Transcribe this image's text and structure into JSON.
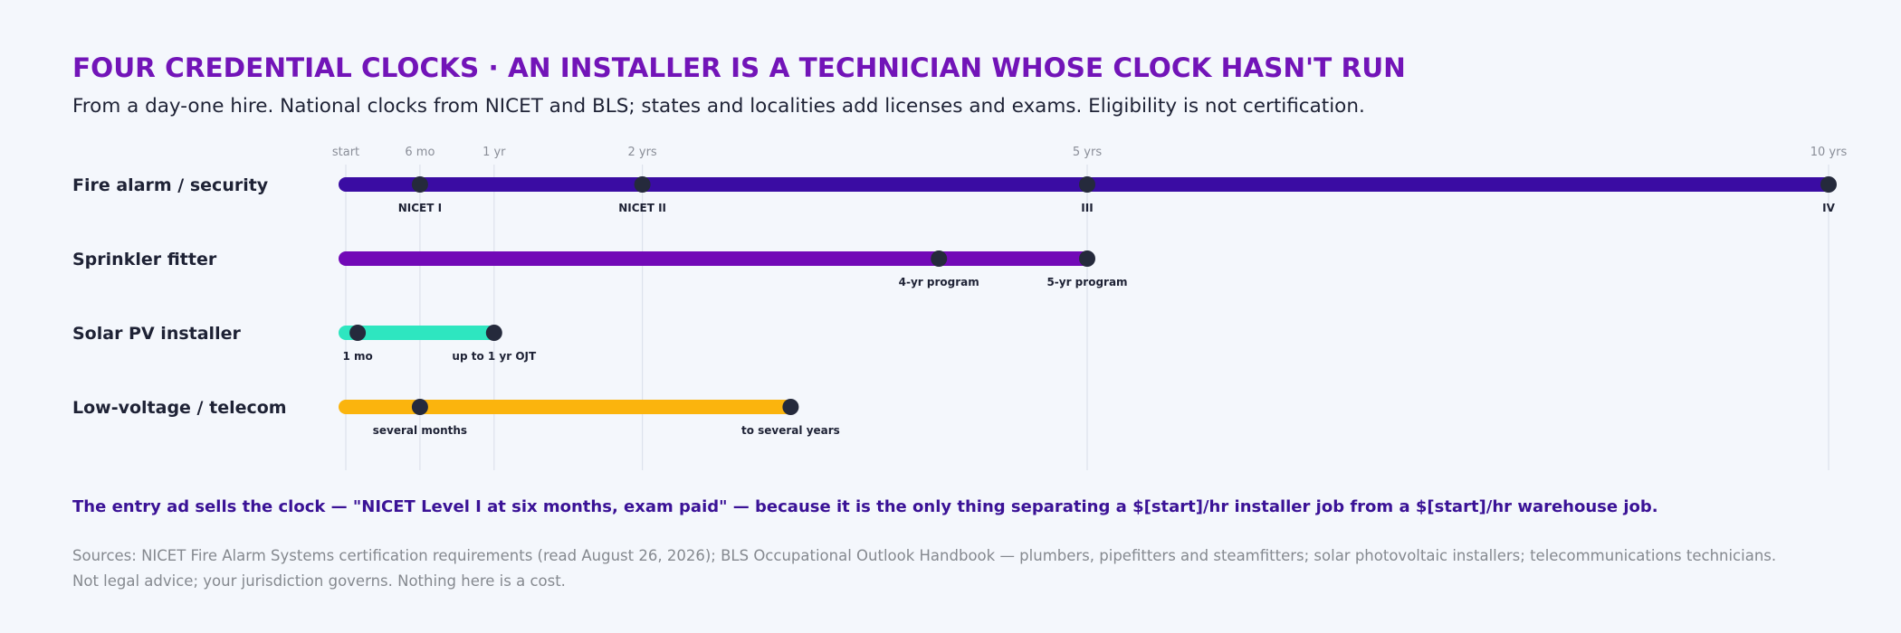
{
  "title": "FOUR CREDENTIAL CLOCKS · AN INSTALLER IS A TECHNICIAN WHOSE CLOCK HASN'T RUN",
  "subtitle": "From a day-one hire. National clocks from NICET and BLS; states and localities add licenses and exams. Eligibility is not certification.",
  "footer": {
    "lead": "The entry ad sells the clock — \"NICET Level I at six months, exam paid\" — because it is the only thing separating a $[start]/hr installer job from a $[start]/hr warehouse job.",
    "sources": [
      "Sources: NICET Fire Alarm Systems certification requirements (read August 26, 2026); BLS Occupational Outlook Handbook — plumbers, pipefitters and steamfitters; solar photovoltaic installers; telecommunications technicians.",
      "Not legal advice; your jurisdiction governs. Nothing here is a cost."
    ]
  },
  "chart_data": {
    "type": "timeline",
    "x_unit": "years",
    "xlim": [
      0,
      10
    ],
    "grid": true,
    "ticks": [
      {
        "value": 0,
        "label": "start"
      },
      {
        "value": 0.5,
        "label": "6 mo"
      },
      {
        "value": 1,
        "label": "1 yr"
      },
      {
        "value": 2,
        "label": "2 yrs"
      },
      {
        "value": 5,
        "label": "5 yrs"
      },
      {
        "value": 10,
        "label": "10 yrs"
      }
    ],
    "marker_color": "#252a3c",
    "series": [
      {
        "name": "Fire alarm / security",
        "color": "#3a0ca3",
        "range": [
          0,
          10
        ],
        "milestones": [
          {
            "x": 0.5,
            "label": "NICET I"
          },
          {
            "x": 2,
            "label": "NICET II"
          },
          {
            "x": 5,
            "label": "III"
          },
          {
            "x": 10,
            "label": "IV"
          }
        ]
      },
      {
        "name": "Sprinkler fitter",
        "color": "#7209b7",
        "range": [
          0,
          5
        ],
        "milestones": [
          {
            "x": 4,
            "label": "4-yr program"
          },
          {
            "x": 5,
            "label": "5-yr program"
          }
        ]
      },
      {
        "name": "Solar PV installer",
        "color": "#2ee6c0",
        "range": [
          0,
          1
        ],
        "milestones": [
          {
            "x": 0.08,
            "label": "1 mo"
          },
          {
            "x": 1,
            "label": "up to 1 yr OJT"
          }
        ]
      },
      {
        "name": "Low-voltage / telecom",
        "color": "#fbb40d",
        "range": [
          0,
          3
        ],
        "milestones": [
          {
            "x": 0.5,
            "label": "several months"
          },
          {
            "x": 3,
            "label": "to several years"
          }
        ]
      }
    ]
  }
}
